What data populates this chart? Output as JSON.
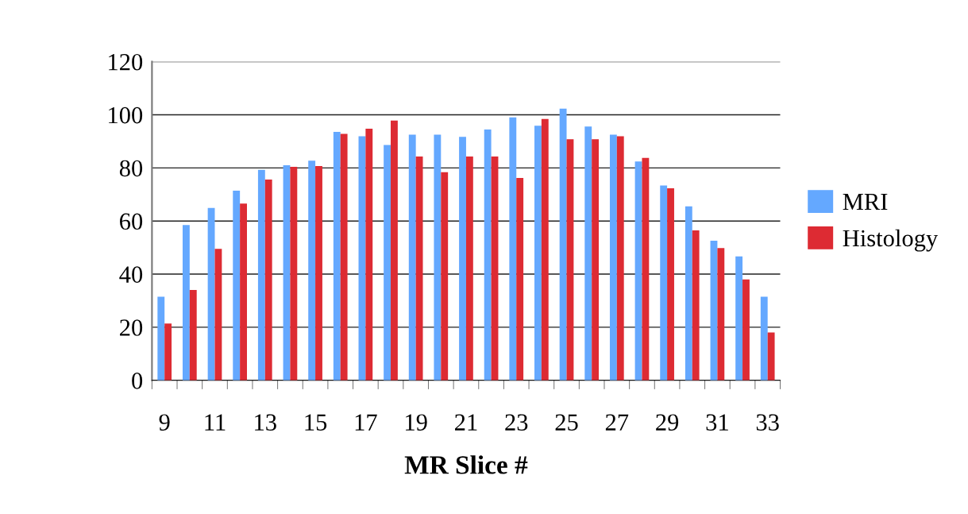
{
  "chart_data": {
    "type": "bar",
    "xlabel": "MR Slice #",
    "categories": [
      "9",
      null,
      "11",
      null,
      "13",
      null,
      "15",
      null,
      "17",
      null,
      "19",
      null,
      "21",
      null,
      "23",
      null,
      "25",
      null,
      "27",
      null,
      "29",
      null,
      "31",
      null,
      "33"
    ],
    "series": [
      {
        "name": "MRI",
        "color": "#64a8ff",
        "values": [
          31.5,
          58.5,
          64.9,
          71.4,
          79.3,
          81.0,
          82.7,
          93.6,
          91.9,
          88.6,
          92.5,
          92.5,
          91.7,
          94.5,
          99.0,
          95.9,
          102.3,
          95.6,
          92.5,
          82.4,
          73.4,
          65.5,
          52.6,
          46.7,
          31.5
        ]
      },
      {
        "name": "Histology",
        "color": "#dd2b33",
        "values": [
          21.4,
          34.0,
          49.5,
          66.6,
          75.6,
          80.4,
          80.7,
          92.8,
          94.8,
          97.8,
          84.3,
          78.4,
          84.3,
          84.3,
          76.2,
          98.4,
          90.8,
          90.8,
          91.9,
          83.8,
          72.3,
          56.5,
          49.8,
          38.0,
          18.0
        ]
      }
    ],
    "ylim": [
      0,
      120
    ],
    "yticks": [
      0,
      20,
      40,
      60,
      80,
      100,
      120
    ],
    "grid": "y",
    "legend": "right"
  }
}
